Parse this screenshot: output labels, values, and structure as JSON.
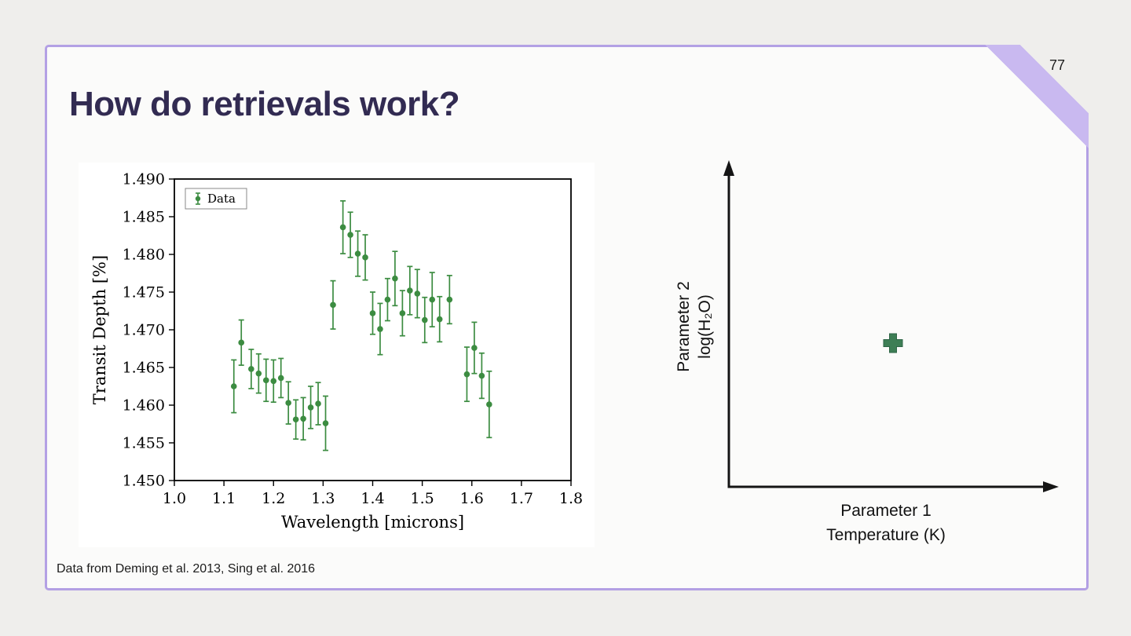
{
  "page": {
    "number": "77"
  },
  "slide": {
    "title": "How do retrievals work?",
    "credit": "Data from Deming et al. 2013, Sing et al. 2016"
  },
  "chart_data": {
    "type": "scatter",
    "title": "",
    "xlabel": "Wavelength [microns]",
    "ylabel": "Transit Depth [%]",
    "xlim": [
      1.0,
      1.8
    ],
    "ylim": [
      1.45,
      1.49
    ],
    "xticks": [
      "1.0",
      "1.1",
      "1.2",
      "1.3",
      "1.4",
      "1.5",
      "1.6",
      "1.7",
      "1.8"
    ],
    "yticks": [
      "1.450",
      "1.455",
      "1.460",
      "1.465",
      "1.470",
      "1.475",
      "1.480",
      "1.485",
      "1.490"
    ],
    "grid": false,
    "legend_position": "upper left",
    "marker_color": "#3c8c41",
    "series": [
      {
        "name": "Data",
        "x": [
          1.12,
          1.135,
          1.155,
          1.17,
          1.185,
          1.2,
          1.215,
          1.23,
          1.245,
          1.26,
          1.275,
          1.29,
          1.305,
          1.32,
          1.34,
          1.355,
          1.37,
          1.385,
          1.4,
          1.415,
          1.43,
          1.445,
          1.46,
          1.475,
          1.49,
          1.505,
          1.52,
          1.535,
          1.555,
          1.59,
          1.605,
          1.62,
          1.635
        ],
        "y": [
          1.4625,
          1.4683,
          1.4648,
          1.4642,
          1.4633,
          1.4632,
          1.4636,
          1.4603,
          1.4581,
          1.4582,
          1.4597,
          1.4602,
          1.4576,
          1.4733,
          1.4836,
          1.4826,
          1.4801,
          1.4796,
          1.4722,
          1.4701,
          1.474,
          1.4768,
          1.4722,
          1.4752,
          1.4748,
          1.4713,
          1.474,
          1.4714,
          1.474,
          1.4641,
          1.4676,
          1.4639,
          1.4601
        ],
        "yerr": [
          0.0035,
          0.003,
          0.0026,
          0.0026,
          0.0028,
          0.0028,
          0.0026,
          0.0028,
          0.0026,
          0.0028,
          0.0028,
          0.0028,
          0.0036,
          0.0032,
          0.0035,
          0.003,
          0.003,
          0.003,
          0.0028,
          0.0034,
          0.0028,
          0.0036,
          0.003,
          0.0032,
          0.0032,
          0.003,
          0.0036,
          0.003,
          0.0032,
          0.0036,
          0.0034,
          0.003,
          0.0044
        ]
      }
    ]
  },
  "diagram": {
    "xlabel": [
      "Parameter 1",
      "Temperature (K)"
    ],
    "ylabel": [
      "Parameter 2",
      "log(H₂O)"
    ],
    "marker": "plus",
    "marker_color": "#3e7e55",
    "marker_outline": "#2f6546",
    "axis_color": "#151515"
  },
  "theme": {
    "page_bg": "#efeeec",
    "slide_bg": "#fbfbfa",
    "border_color": "#b3a0e4",
    "corner_color": "#c9b9f0",
    "title_color": "#322b52"
  }
}
